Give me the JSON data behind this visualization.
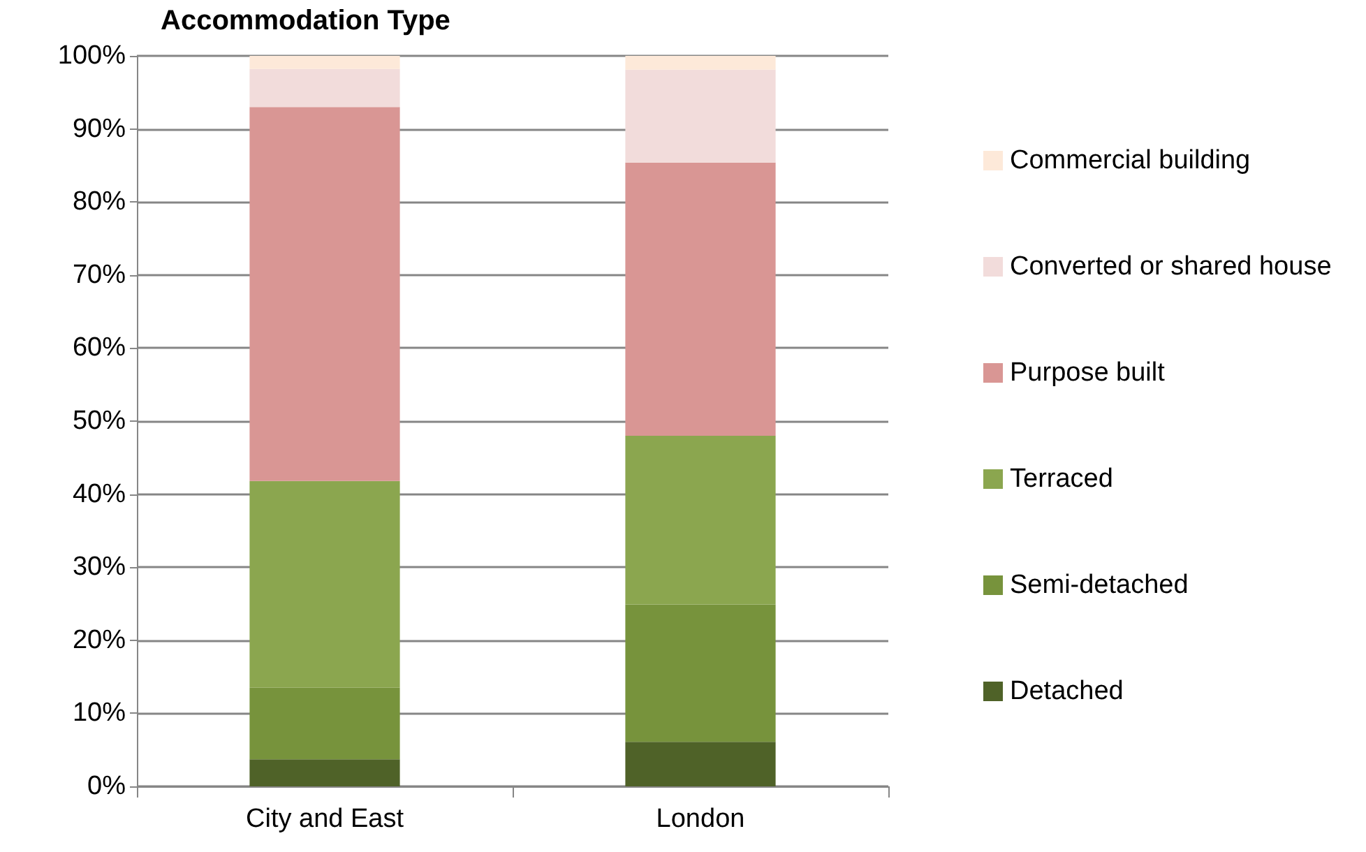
{
  "chart_data": {
    "type": "bar",
    "stacked": true,
    "title": "Accommodation Type",
    "categories": [
      "City and East",
      "London"
    ],
    "series": [
      {
        "name": "Detached",
        "color": "#4f6228",
        "values": [
          3.7,
          6.1
        ]
      },
      {
        "name": "Semi-detached",
        "color": "#77933c",
        "values": [
          9.8,
          18.8
        ]
      },
      {
        "name": "Terraced",
        "color": "#8ba64f",
        "values": [
          28.3,
          23.1
        ]
      },
      {
        "name": "Purpose built",
        "color": "#d99694",
        "values": [
          51.2,
          37.4
        ]
      },
      {
        "name": "Converted or shared house",
        "color": "#f2dcdb",
        "values": [
          5.2,
          12.7
        ]
      },
      {
        "name": "Commercial building",
        "color": "#fde9d9",
        "values": [
          1.8,
          1.9
        ]
      }
    ],
    "ylim": [
      0,
      100
    ],
    "yticks": [
      {
        "value": 0,
        "label": "0%"
      },
      {
        "value": 10,
        "label": "10%"
      },
      {
        "value": 20,
        "label": "20%"
      },
      {
        "value": 30,
        "label": "30%"
      },
      {
        "value": 40,
        "label": "40%"
      },
      {
        "value": 50,
        "label": "50%"
      },
      {
        "value": 60,
        "label": "60%"
      },
      {
        "value": 70,
        "label": "70%"
      },
      {
        "value": 80,
        "label": "80%"
      },
      {
        "value": 90,
        "label": "90%"
      },
      {
        "value": 100,
        "label": "100%"
      }
    ],
    "grid": "y",
    "legend": "right"
  }
}
